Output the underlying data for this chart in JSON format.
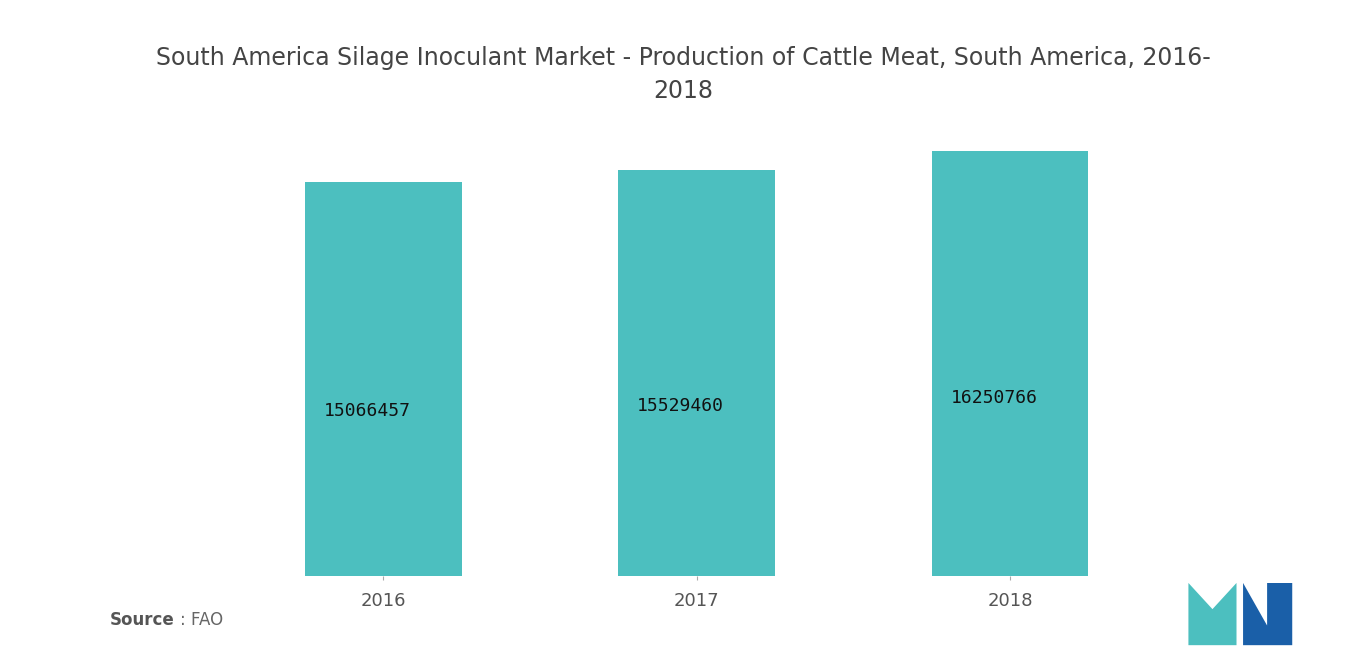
{
  "title": "South America Silage Inoculant Market - Production of Cattle Meat, South America, 2016-\n2018",
  "categories": [
    "2016",
    "2017",
    "2018"
  ],
  "values": [
    15066457,
    15529460,
    16250766
  ],
  "bar_color": "#4CBFBF",
  "bar_width": 0.5,
  "value_labels": [
    "15066457",
    "15529460",
    "16250766"
  ],
  "source_text": "Source : FAO",
  "background_color": "#ffffff",
  "title_fontsize": 17,
  "label_fontsize": 13,
  "tick_fontsize": 13,
  "source_fontsize": 12,
  "ylim_min": 0,
  "ylim_max": 17000000
}
